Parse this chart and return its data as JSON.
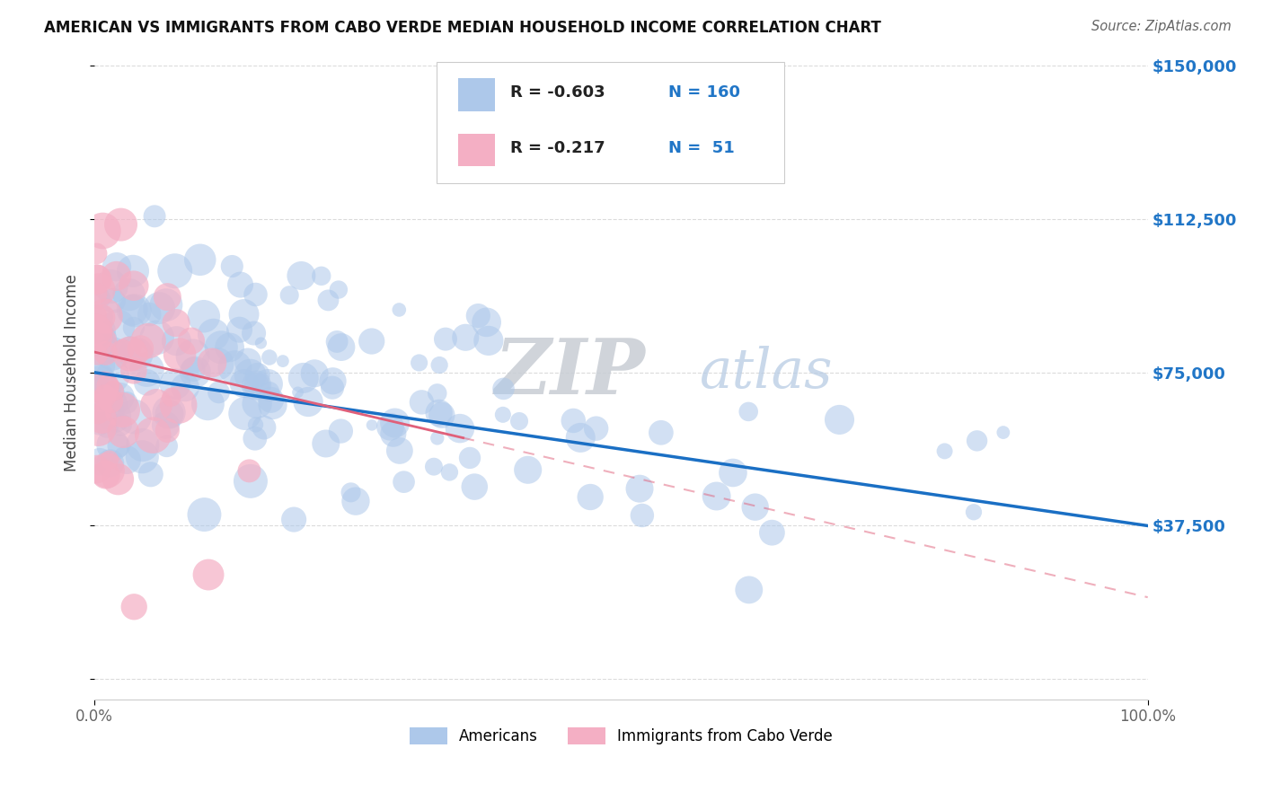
{
  "title": "AMERICAN VS IMMIGRANTS FROM CABO VERDE MEDIAN HOUSEHOLD INCOME CORRELATION CHART",
  "source": "Source: ZipAtlas.com",
  "ylabel": "Median Household Income",
  "xlim": [
    0.0,
    1.0
  ],
  "ylim": [
    -5000,
    155000
  ],
  "yticks": [
    0,
    37500,
    75000,
    112500,
    150000
  ],
  "ytick_labels": [
    "",
    "$37,500",
    "$75,000",
    "$112,500",
    "$150,000"
  ],
  "xtick_labels": [
    "0.0%",
    "100.0%"
  ],
  "americans_color": "#adc8ea",
  "cabo_verde_color": "#f4afc4",
  "trend_american_color": "#1a6fc4",
  "trend_cabo_color": "#e0607a",
  "background_color": "#ffffff",
  "watermark_zip_color": "#c8cdd4",
  "watermark_atlas_color": "#b8cce4",
  "R_american": -0.603,
  "N_american": 160,
  "R_cabo": -0.217,
  "N_cabo": 51,
  "title_fontsize": 12,
  "tick_color": "#2176c7",
  "grid_color": "#d8d8d8",
  "legend_r_color": "#c44060"
}
